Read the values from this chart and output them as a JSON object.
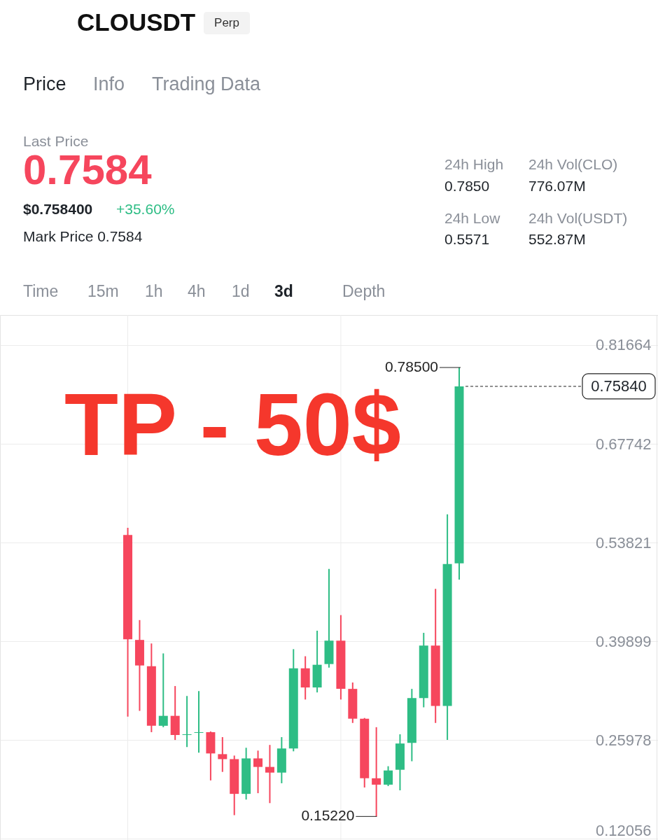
{
  "chart_data": {
    "type": "candlestick",
    "title": "CLOUSDT",
    "subtitle": "Perp",
    "categories": [
      null,
      null,
      null,
      null,
      null,
      null,
      null,
      null,
      null,
      null,
      null,
      null,
      null,
      null,
      null,
      null,
      null,
      null,
      null,
      null,
      null,
      null,
      null,
      null,
      null,
      null,
      null,
      null,
      null,
      null,
      null,
      null,
      null,
      null,
      null,
      null,
      null,
      null,
      null,
      null,
      null,
      null,
      null,
      null,
      null,
      null,
      null,
      null,
      null,
      null,
      null,
      null,
      null,
      null,
      null
    ],
    "ohlc": [
      null,
      null,
      null,
      null,
      null,
      null,
      null,
      null,
      null,
      null,
      [
        0.549,
        0.559,
        0.293,
        0.402
      ],
      [
        0.401,
        0.429,
        0.301,
        0.365
      ],
      [
        0.364,
        0.396,
        0.271,
        0.28
      ],
      [
        0.28,
        0.382,
        0.278,
        0.294
      ],
      [
        0.294,
        0.336,
        0.26,
        0.267
      ],
      [
        0.267,
        0.322,
        0.25,
        0.268
      ],
      [
        0.27,
        0.329,
        0.242,
        0.271
      ],
      [
        0.271,
        0.272,
        0.203,
        0.241
      ],
      [
        0.24,
        0.264,
        0.215,
        0.233
      ],
      [
        0.233,
        0.238,
        0.154,
        0.184
      ],
      [
        0.184,
        0.249,
        0.176,
        0.234
      ],
      [
        0.234,
        0.245,
        0.185,
        0.222
      ],
      [
        0.222,
        0.253,
        0.171,
        0.214
      ],
      [
        0.214,
        0.264,
        0.199,
        0.248
      ],
      [
        0.248,
        0.388,
        0.244,
        0.361
      ],
      [
        0.361,
        0.378,
        0.317,
        0.334
      ],
      [
        0.334,
        0.414,
        0.327,
        0.366
      ],
      [
        0.367,
        0.501,
        0.362,
        0.4
      ],
      [
        0.4,
        0.436,
        0.317,
        0.332
      ],
      [
        0.332,
        0.341,
        0.284,
        0.29
      ],
      [
        0.29,
        0.291,
        0.193,
        0.206
      ],
      [
        0.206,
        0.278,
        0.1522,
        0.197
      ],
      [
        0.197,
        0.223,
        0.195,
        0.217
      ],
      [
        0.218,
        0.268,
        0.189,
        0.255
      ],
      [
        0.256,
        0.332,
        0.23,
        0.319
      ],
      [
        0.319,
        0.411,
        0.306,
        0.393
      ],
      [
        0.393,
        0.473,
        0.284,
        0.308
      ],
      [
        0.308,
        0.578,
        0.26,
        0.508
      ],
      [
        0.509,
        0.785,
        0.486,
        0.7584
      ],
      null,
      null,
      null,
      null,
      null,
      null,
      null,
      null,
      null,
      null,
      null,
      null,
      null,
      null,
      null,
      null
    ],
    "colors": [
      null,
      null,
      null,
      null,
      null,
      null,
      null,
      null,
      null,
      null,
      "#f6465d",
      "#f6465d",
      "#f6465d",
      "#2ebd85",
      "#f6465d",
      "#2ebd85",
      "#2ebd85",
      "#f6465d",
      "#f6465d",
      "#f6465d",
      "#2ebd85",
      "#f6465d",
      "#f6465d",
      "#2ebd85",
      "#2ebd85",
      "#f6465d",
      "#2ebd85",
      "#2ebd85",
      "#f6465d",
      "#f6465d",
      "#f6465d",
      "#f6465d",
      "#2ebd85",
      "#2ebd85",
      "#2ebd85",
      "#2ebd85",
      "#f6465d",
      "#2ebd85",
      "#2ebd85",
      null,
      null,
      null,
      null,
      null,
      null,
      null,
      null,
      null,
      null,
      null,
      null,
      null,
      null,
      null,
      null
    ],
    "ylim": [
      0.119,
      0.859
    ],
    "yticks": [
      0.81664,
      0.67742,
      0.53821,
      0.39899,
      0.25978,
      0.12056
    ],
    "grid": true,
    "tick_labels": "y",
    "ref_lines": [
      {
        "axis": "y",
        "value": 0.7584,
        "label": "0.75840",
        "line_style": "dashed",
        "color": "#222222"
      }
    ],
    "annotations": [
      "Price",
      "Info",
      "Trading Data",
      "Last Price",
      "0.7584",
      "$0.758400",
      "+35.60%",
      "Mark Price 0.7584",
      "24h High",
      "0.7850",
      "24h Vol(CLO)",
      "776.07M",
      "24h Low",
      "0.5571",
      "24h Vol(USDT)",
      "552.87M",
      "Time",
      "15m",
      "1h",
      "4h",
      "1d",
      "3d",
      "Depth",
      "TP - 50$",
      "0.78500",
      "0.15220"
    ]
  }
}
